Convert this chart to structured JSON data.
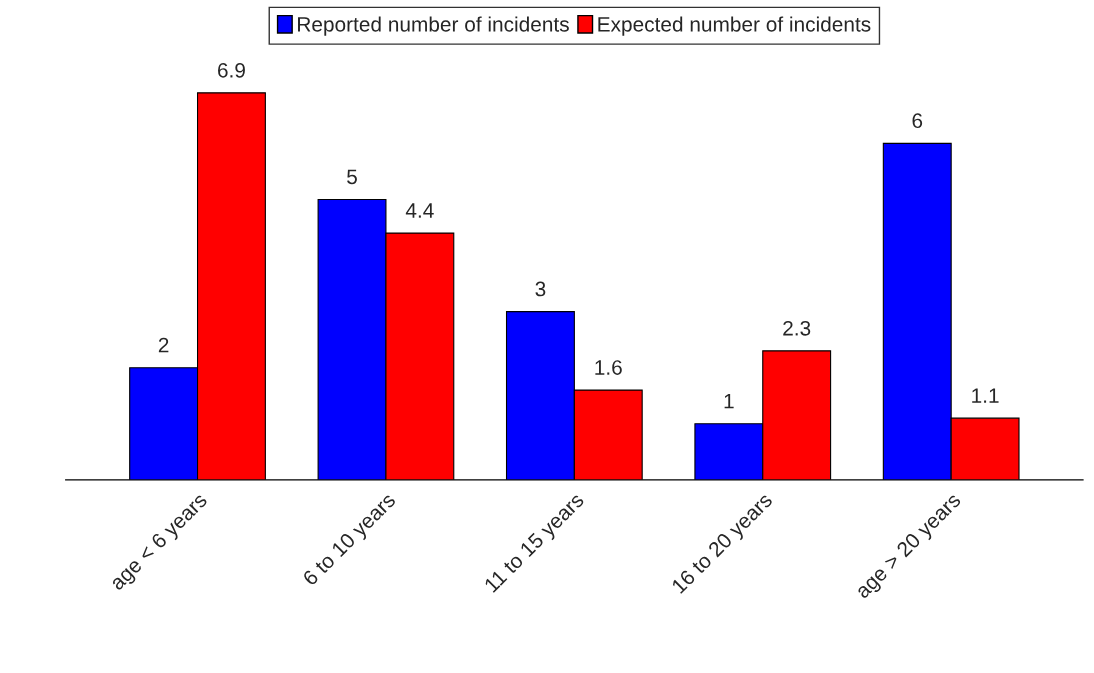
{
  "chart_data": {
    "type": "bar",
    "categories": [
      "age < 6 years",
      "6 to 10 years",
      "11 to 15 years",
      "16 to 20 years",
      "age > 20 years"
    ],
    "series": [
      {
        "name": "Reported number of incidents",
        "color": "#0000ff",
        "values": [
          2,
          5,
          3,
          1,
          6
        ]
      },
      {
        "name": "Expected number of incidents",
        "color": "#ff0000",
        "values": [
          6.9,
          4.4,
          1.6,
          2.3,
          1.1
        ]
      }
    ],
    "data_labels": true,
    "legend": "top",
    "grid": false
  }
}
